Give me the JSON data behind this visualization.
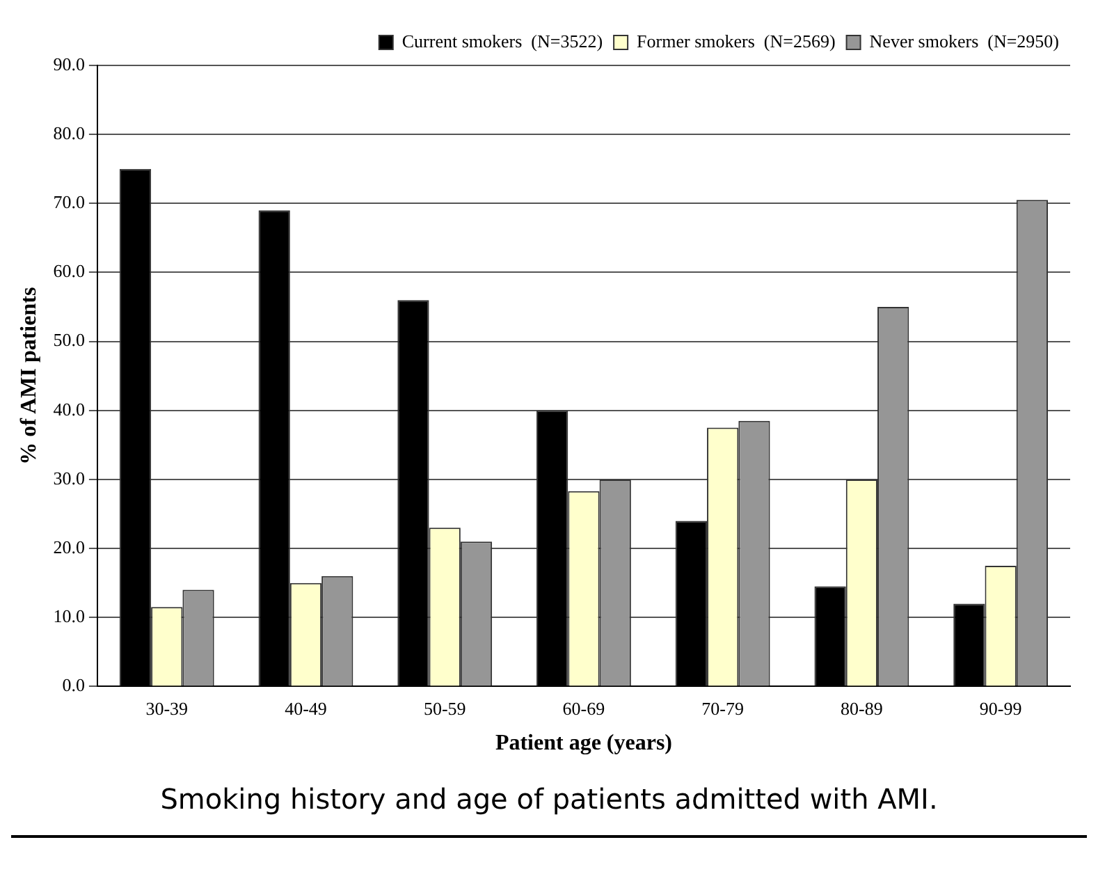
{
  "chart_data": {
    "type": "bar",
    "xlabel": "Patient age (years)",
    "ylabel": "% of AMI patients",
    "categories": [
      "30-39",
      "40-49",
      "50-59",
      "60-69",
      "70-79",
      "80-89",
      "90-99"
    ],
    "series": [
      {
        "name": "Current smokers  (N=3522)",
        "color": "#000000",
        "values": [
          75,
          69,
          56,
          40,
          24,
          14.5,
          12
        ]
      },
      {
        "name": "Former smokers  (N=2569)",
        "color": "#ffffcc",
        "values": [
          11.5,
          15,
          23,
          28.3,
          37.5,
          30,
          17.5
        ]
      },
      {
        "name": "Never smokers  (N=2950)",
        "color": "#969696",
        "values": [
          14,
          16,
          21,
          30,
          38.5,
          55,
          70.5
        ]
      }
    ],
    "ylim": [
      0,
      90
    ],
    "yticks": [
      {
        "value": 0,
        "label": "0.0"
      },
      {
        "value": 10,
        "label": "10.0"
      },
      {
        "value": 20,
        "label": "20.0"
      },
      {
        "value": 30,
        "label": "30.0"
      },
      {
        "value": 40,
        "label": "40.0"
      },
      {
        "value": 50,
        "label": "50.0"
      },
      {
        "value": 60,
        "label": "60.0"
      },
      {
        "value": 70,
        "label": "70.0"
      },
      {
        "value": 80,
        "label": "80.0"
      },
      {
        "value": 90,
        "label": "90.0"
      }
    ],
    "grid": "y",
    "legend": "top right",
    "annotations": [
      "Smoking history and age of patients admitted with AMI."
    ]
  }
}
